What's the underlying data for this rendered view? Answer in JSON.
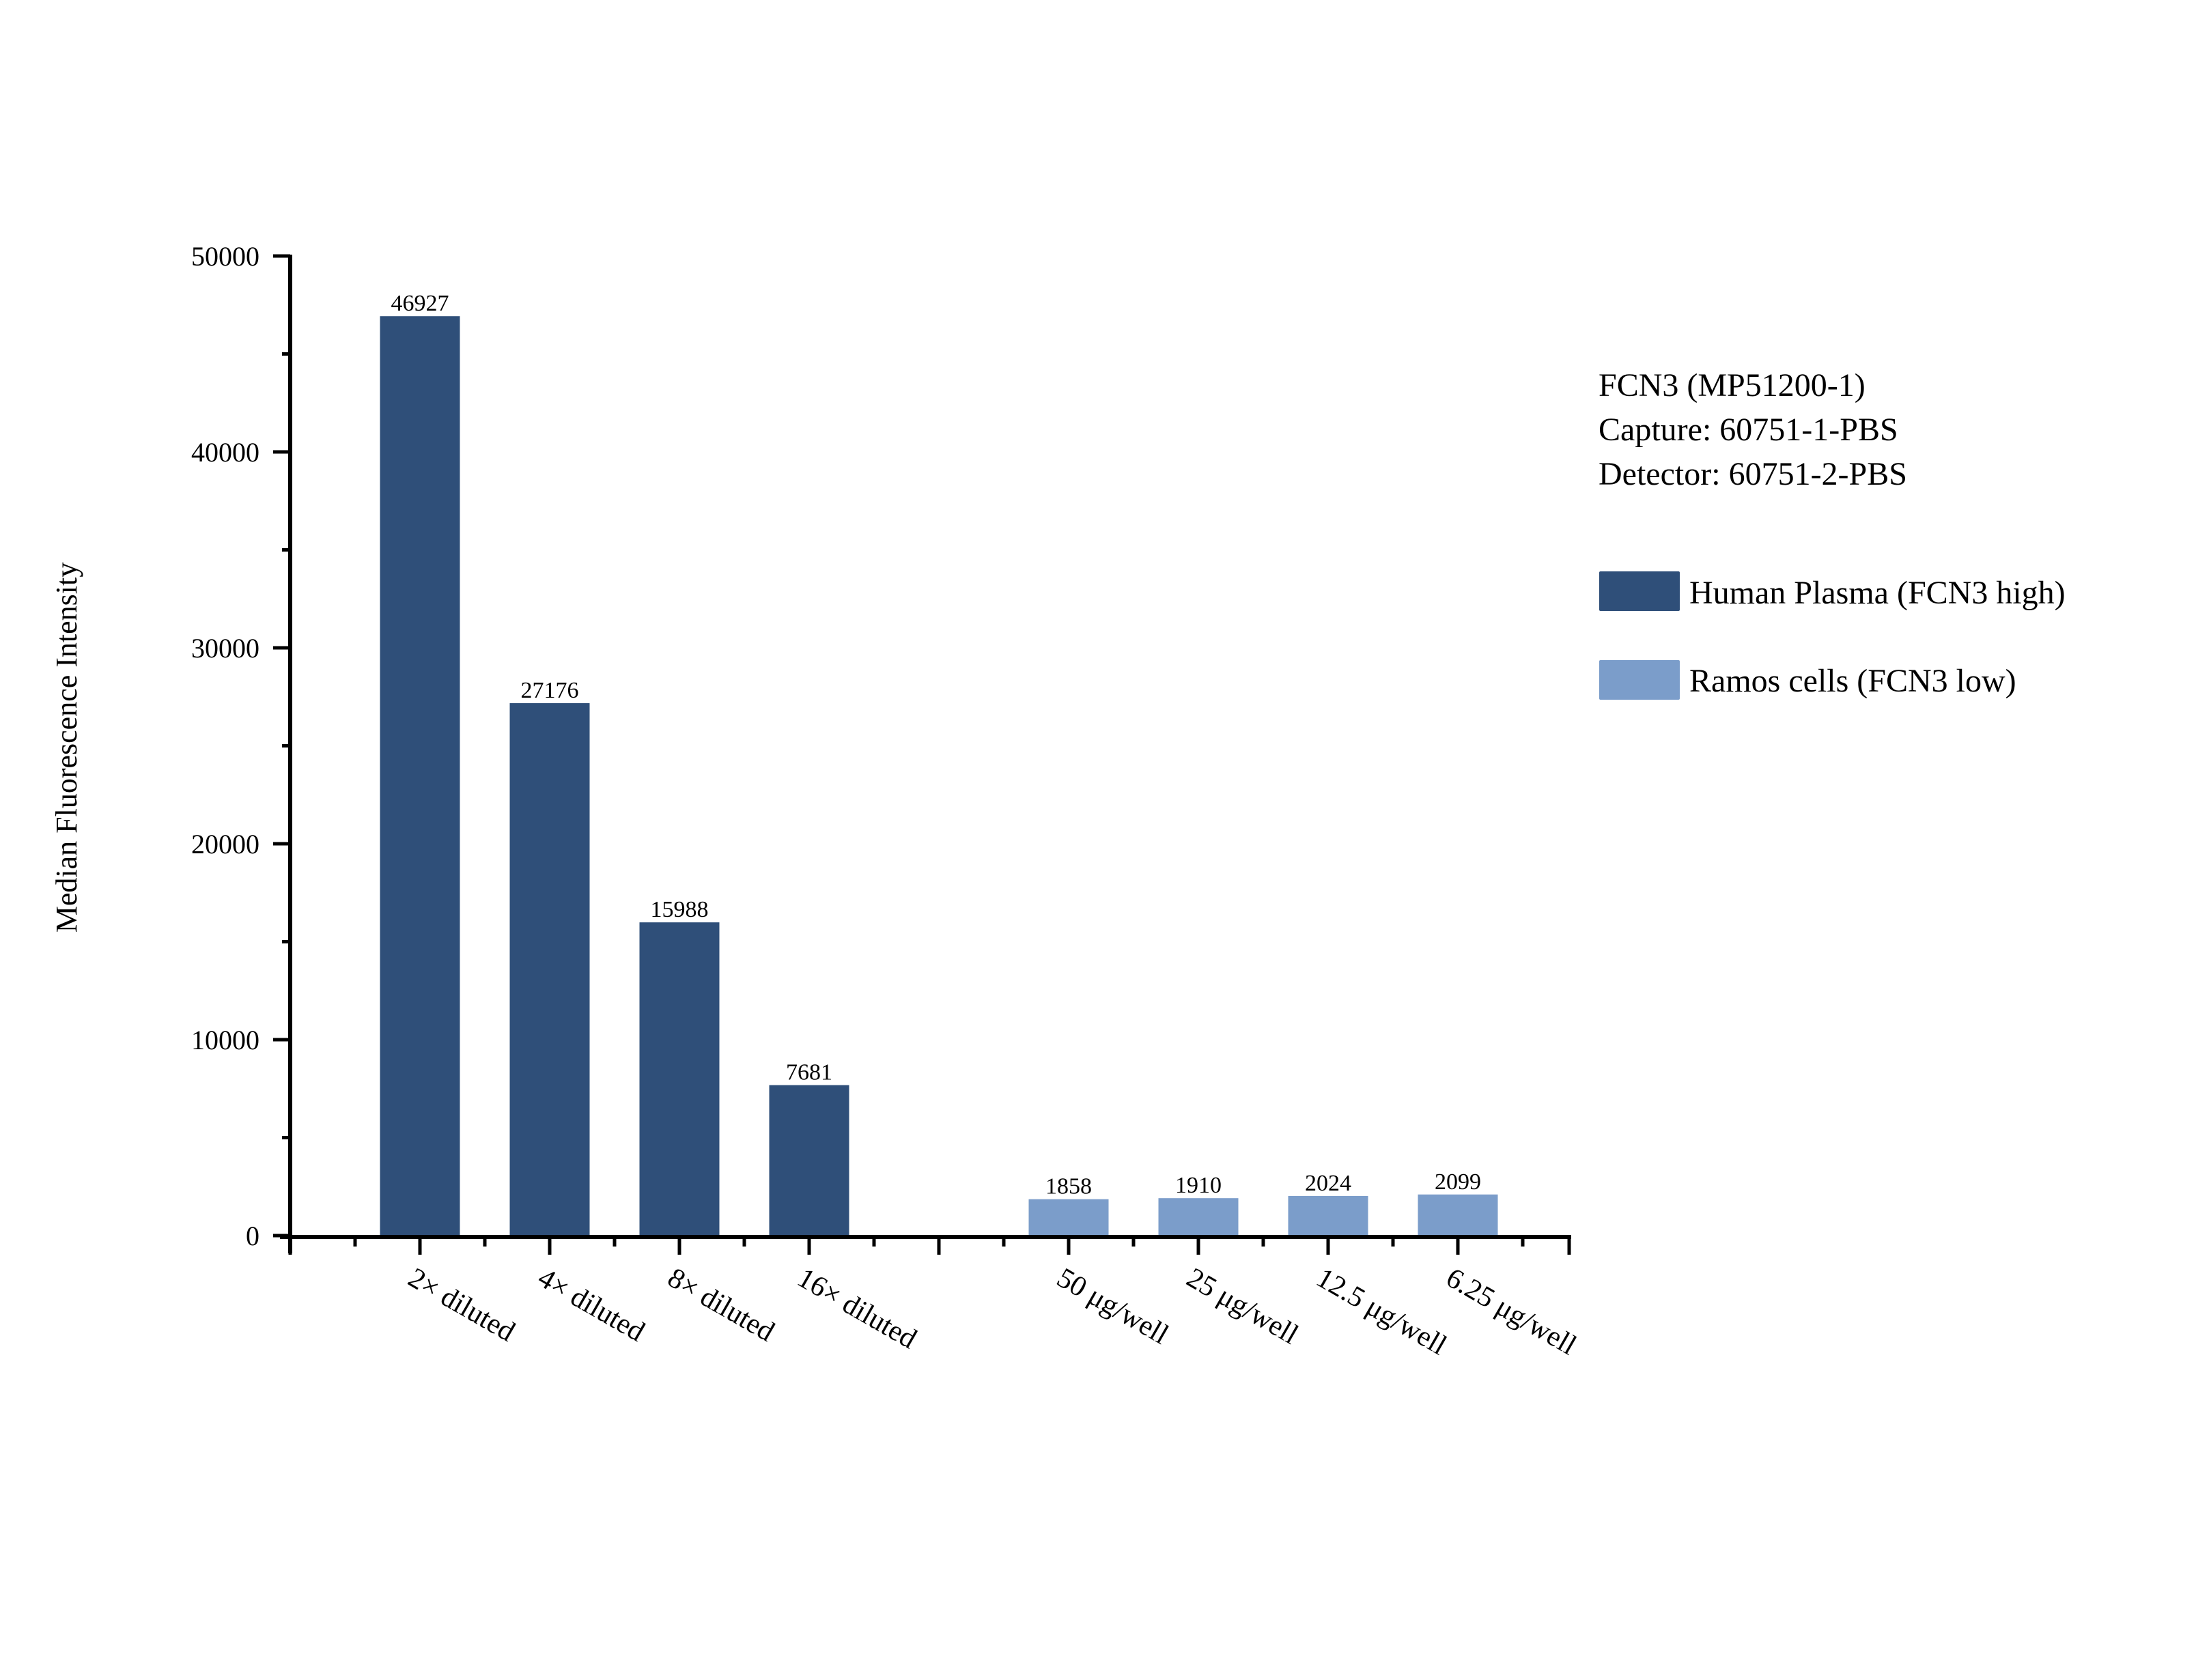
{
  "chart_data": {
    "type": "bar",
    "title": "",
    "xlabel": "",
    "ylabel": "Median Fluorescence Intensity",
    "ylim": [
      0,
      50000
    ],
    "yticks": [
      0,
      10000,
      20000,
      30000,
      40000,
      50000
    ],
    "ytick_labels": [
      "0",
      "10000",
      "20000",
      "30000",
      "40000",
      "50000"
    ],
    "grid": false,
    "legend_position": "right",
    "annotation": [
      "FCN3 (MP51200-1)",
      "Capture: 60751-1-PBS",
      "Detector: 60751-2-PBS"
    ],
    "categories": [
      "2× diluted",
      "4× diluted",
      "8× diluted",
      "16× diluted",
      "",
      "50 μg/well",
      "25 μg/well",
      "12.5 μg/well",
      "6.25 μg/well"
    ],
    "series": [
      {
        "name": "Human Plasma (FCN3 high)",
        "color": "#2f4f79",
        "categories": [
          "2× diluted",
          "4× diluted",
          "8× diluted",
          "16× diluted"
        ],
        "values": [
          46927,
          27176,
          15988,
          7681
        ],
        "labels": [
          "46927",
          "27176",
          "15988",
          "7681"
        ]
      },
      {
        "name": "Ramos cells (FCN3 low)",
        "color": "#7b9dca",
        "categories": [
          "50 μg/well",
          "25 μg/well",
          "12.5 μg/well",
          "6.25 μg/well"
        ],
        "values": [
          1858,
          1910,
          2024,
          2099
        ],
        "labels": [
          "1858",
          "1910",
          "2024",
          "2099"
        ]
      }
    ]
  },
  "annotation": {
    "line1": "FCN3 (MP51200-1)",
    "line2": "Capture: 60751-1-PBS",
    "line3": "Detector: 60751-2-PBS"
  },
  "legend": {
    "items": [
      {
        "label": "Human Plasma (FCN3 high)",
        "color": "#2f4f79"
      },
      {
        "label": "Ramos cells (FCN3 low)",
        "color": "#7b9dca"
      }
    ]
  },
  "axes": {
    "ylabel": "Median Fluorescence Intensity"
  }
}
